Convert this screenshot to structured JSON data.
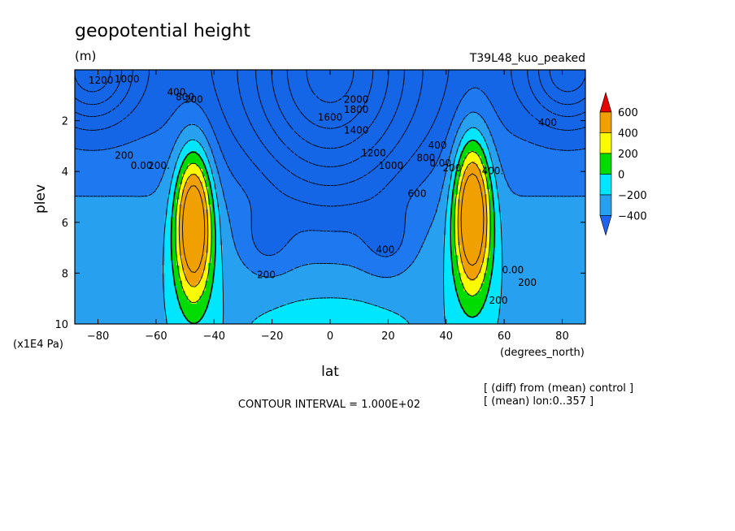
{
  "chart_data": {
    "type": "heatmap",
    "title": "geopotential height",
    "units": "(m)",
    "experiment": "T39L48_kuo_peaked",
    "xlabel": "lat",
    "x_units": "(degrees_north)",
    "ylabel": "plev",
    "y_units": "(x1E4 Pa)",
    "xlim": [
      -88,
      88
    ],
    "ylim": [
      10,
      0
    ],
    "x_ticks": [
      "-80",
      "-60",
      "-40",
      "-20",
      "0",
      "20",
      "40",
      "60",
      "80"
    ],
    "y_ticks": [
      "2",
      "4",
      "6",
      "8",
      "10"
    ],
    "x_tick_values": [
      -80,
      -60,
      -40,
      -20,
      0,
      20,
      40,
      60,
      80
    ],
    "y_tick_values": [
      2,
      4,
      6,
      8,
      10
    ],
    "contour_interval_text": "CONTOUR INTERVAL = 1.000E+02",
    "notes": [
      "[ (diff) from (mean) control ]",
      "[ (mean) lon:0..357 ]"
    ],
    "colorbar": {
      "labels": [
        "600",
        "400",
        "200",
        "0",
        "−200",
        "−400"
      ],
      "bounds": [
        -400,
        -200,
        0,
        200,
        400,
        600
      ],
      "colors": [
        "#1e64f0",
        "#00c8ff",
        "#00dc00",
        "#fafa00",
        "#f0a000",
        "#fa0000"
      ],
      "under_color": "#1e64f0",
      "over_color": "#e60000"
    },
    "levels": [
      -2000,
      -1800,
      -1600,
      -1400,
      -1200,
      -1000,
      -800,
      -600,
      -400,
      -200,
      0,
      200,
      400,
      600
    ],
    "fill_colors": {
      "lt_-600": "#1466e6",
      "-600_-400": "#1e78f0",
      "-400_-200": "#28a0f0",
      "-200_0": "#00e6ff",
      "0_200": "#00dc00",
      "200_400": "#fafa00",
      "ge_400": "#f0a000"
    },
    "field_model": {
      "background": {
        "points": [
          [
            10,
            0
          ],
          [
            8.6,
            -20
          ],
          [
            8.2,
            -10
          ],
          [
            7.6,
            0
          ],
          [
            7.9,
            10
          ],
          [
            8.8,
            20
          ],
          [
            10,
            0
          ]
        ]
      },
      "anomalies": [
        {
          "name": "southern-jet",
          "lat": -47,
          "p": 6.0,
          "amp": 640,
          "lat_width": 6.5,
          "p_width": 3.0
        },
        {
          "name": "northern-jet",
          "lat": 49,
          "p": 5.6,
          "amp": 660,
          "lat_width": 6.5,
          "p_width": 3.1
        }
      ]
    },
    "contour_labels": [
      {
        "text": "1200",
        "lat": -79,
        "p": 0.55
      },
      {
        "text": "1000",
        "lat": -70,
        "p": 0.5
      },
      {
        "text": "400",
        "lat": -53,
        "p": 1.0
      },
      {
        "text": "800",
        "lat": -50,
        "p": 1.2
      },
      {
        "text": "200",
        "lat": -47,
        "p": 1.3
      },
      {
        "text": "200",
        "lat": -71,
        "p": 3.5
      },
      {
        "text": "0.00",
        "lat": -65,
        "p": 3.9
      },
      {
        "text": "200.",
        "lat": -59,
        "p": 3.9
      },
      {
        "text": "2000",
        "lat": 9,
        "p": 1.3
      },
      {
        "text": "1800",
        "lat": 9,
        "p": 1.7
      },
      {
        "text": "1600",
        "lat": 0,
        "p": 2.0
      },
      {
        "text": "1400",
        "lat": 9,
        "p": 2.5
      },
      {
        "text": "1200",
        "lat": 15,
        "p": 3.4
      },
      {
        "text": "1000",
        "lat": 21,
        "p": 3.9
      },
      {
        "text": "800",
        "lat": 33,
        "p": 3.6
      },
      {
        "text": "600",
        "lat": 30,
        "p": 5.0
      },
      {
        "text": "400",
        "lat": 37,
        "p": 3.1
      },
      {
        "text": "400",
        "lat": 19,
        "p": 7.2
      },
      {
        "text": "200",
        "lat": -22,
        "p": 8.2
      },
      {
        "text": "0.00",
        "lat": 38,
        "p": 3.8
      },
      {
        "text": "200",
        "lat": 42,
        "p": 4.0
      },
      {
        "text": "400.",
        "lat": 56,
        "p": 4.1
      },
      {
        "text": "0.00",
        "lat": 63,
        "p": 8.0
      },
      {
        "text": "200",
        "lat": 68,
        "p": 8.5
      },
      {
        "text": "200",
        "lat": 58,
        "p": 9.2
      },
      {
        "text": "400",
        "lat": 75,
        "p": 2.2
      }
    ]
  }
}
